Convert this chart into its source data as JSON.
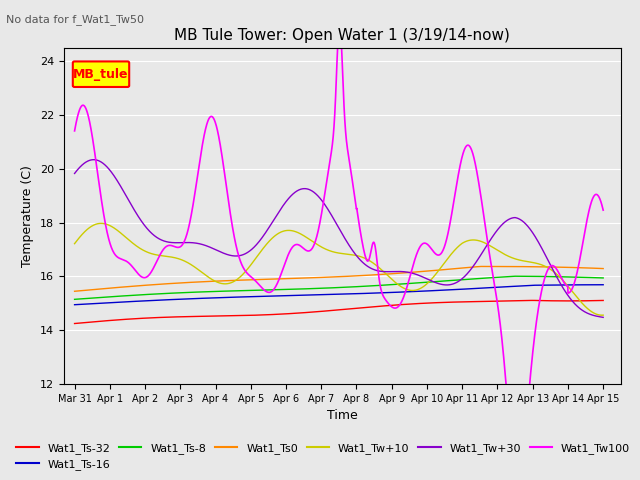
{
  "title": "MB Tule Tower: Open Water 1 (3/19/14-now)",
  "subtitle": "No data for f_Wat1_Tw50",
  "ylabel": "Temperature (C)",
  "xlabel": "Time",
  "ylim": [
    12,
    24.5
  ],
  "xlim": [
    -0.3,
    15.5
  ],
  "background_color": "#e8e8e8",
  "legend_box_label": "MB_tule",
  "legend_box_color": "#ffff00",
  "legend_box_border": "#ff0000",
  "xtick_labels": [
    "Mar 31",
    "Apr 1",
    "Apr 2",
    "Apr 3",
    "Apr 4",
    "Apr 5",
    "Apr 6",
    "Apr 7",
    "Apr 8",
    "Apr 9",
    "Apr 10",
    "Apr 11",
    "Apr 12",
    "Apr 13",
    "Apr 14",
    "Apr 15"
  ],
  "ytick_values": [
    12,
    14,
    16,
    18,
    20,
    22,
    24
  ],
  "colors": {
    "Wat1_Ts-32": "#ff0000",
    "Wat1_Ts-16": "#0000cc",
    "Wat1_Ts-8": "#00cc00",
    "Wat1_Ts0": "#ff8800",
    "Wat1_Tw+10": "#cccc00",
    "Wat1_Tw+30": "#8800cc",
    "Wat1_Tw100": "#ff00ff"
  }
}
